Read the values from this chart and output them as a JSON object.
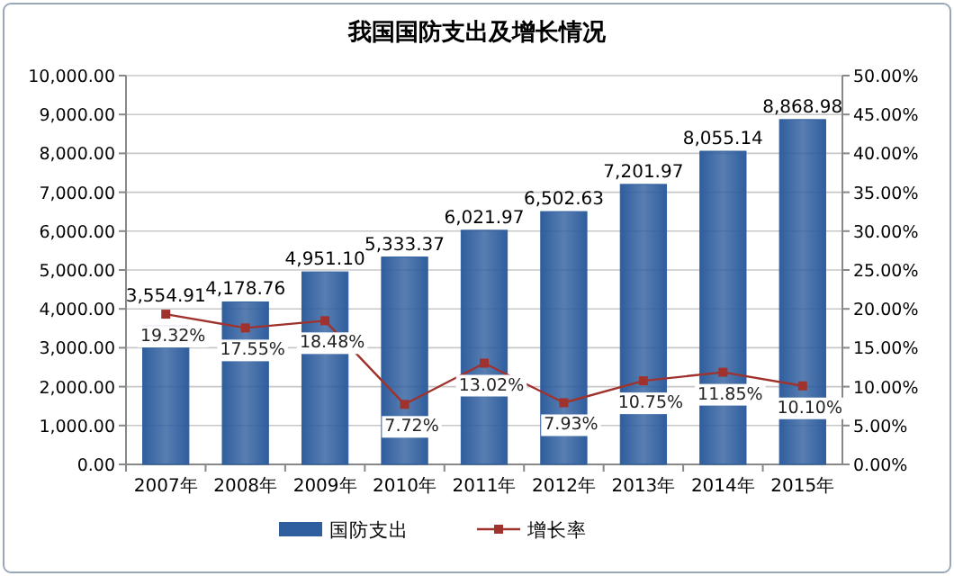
{
  "chart_data": {
    "type": "bar",
    "title": "我国国防支出及增长情况",
    "categories": [
      "2007年",
      "2008年",
      "2009年",
      "2010年",
      "2011年",
      "2012年",
      "2013年",
      "2014年",
      "2015年"
    ],
    "series": [
      {
        "name": "国防支出",
        "color": "#2f5e9e",
        "values": [
          3554.91,
          4178.76,
          4951.1,
          5333.37,
          6021.97,
          6502.63,
          7201.97,
          8055.14,
          8868.98
        ],
        "value_labels": [
          "3,554.91",
          "4,178.76",
          "4,951.10",
          "5,333.37",
          "6,021.97",
          "6,502.63",
          "7,201.97",
          "8,055.14",
          "8,868.98"
        ]
      },
      {
        "name": "增长率",
        "type": "line",
        "axis": "y2",
        "color": "#a0322d",
        "marker": "square",
        "values": [
          19.32,
          17.55,
          18.48,
          7.72,
          13.02,
          7.93,
          10.75,
          11.85,
          10.1
        ],
        "value_labels": [
          "19.32%",
          "17.55%",
          "18.48%",
          "7.72%",
          "13.02%",
          "7.93%",
          "10.75%",
          "11.85%",
          "10.10%"
        ]
      }
    ],
    "ylim": [
      0,
      10000
    ],
    "yticks": [
      {
        "value": 0,
        "label": "0.00"
      },
      {
        "value": 1000,
        "label": "1,000.00"
      },
      {
        "value": 2000,
        "label": "2,000.00"
      },
      {
        "value": 3000,
        "label": "3,000.00"
      },
      {
        "value": 4000,
        "label": "4,000.00"
      },
      {
        "value": 5000,
        "label": "5,000.00"
      },
      {
        "value": 6000,
        "label": "6,000.00"
      },
      {
        "value": 7000,
        "label": "7,000.00"
      },
      {
        "value": 8000,
        "label": "8,000.00"
      },
      {
        "value": 9000,
        "label": "9,000.00"
      },
      {
        "value": 10000,
        "label": "10,000.00"
      }
    ],
    "y2lim": [
      0,
      50
    ],
    "y2ticks": [
      {
        "value": 0,
        "label": "0.00%"
      },
      {
        "value": 5,
        "label": "5.00%"
      },
      {
        "value": 10,
        "label": "10.00%"
      },
      {
        "value": 15,
        "label": "15.00%"
      },
      {
        "value": 20,
        "label": "20.00%"
      },
      {
        "value": 25,
        "label": "25.00%"
      },
      {
        "value": 30,
        "label": "30.00%"
      },
      {
        "value": 35,
        "label": "35.00%"
      },
      {
        "value": 40,
        "label": "40.00%"
      },
      {
        "value": 45,
        "label": "45.00%"
      },
      {
        "value": 50,
        "label": "50.00%"
      }
    ],
    "grid": "y",
    "legend": "bottom"
  }
}
